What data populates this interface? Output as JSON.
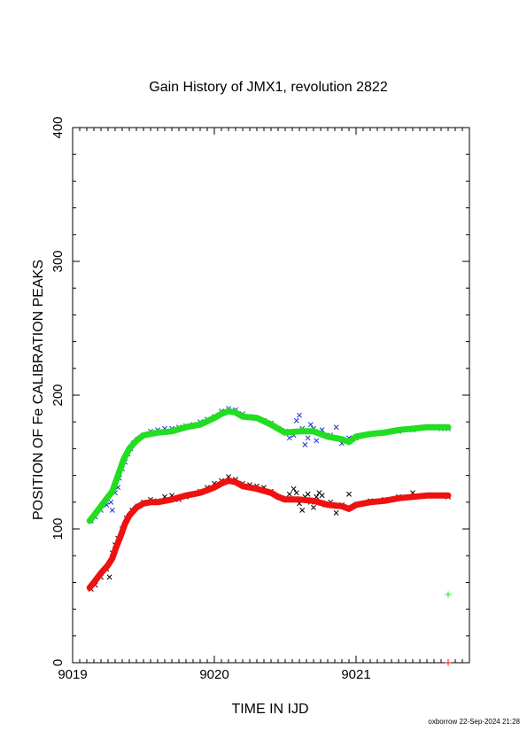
{
  "chart_data": {
    "type": "scatter",
    "title": "Gain History of JMX1, revolution 2822",
    "xlabel": "TIME IN IJD",
    "ylabel": "POSITION OF Fe CALIBRATION PEAKS",
    "xlim": [
      9019.0,
      9021.8
    ],
    "ylim": [
      0,
      400
    ],
    "x_ticks": [
      9019,
      9020,
      9021
    ],
    "y_ticks": [
      0,
      100,
      200,
      300,
      400
    ],
    "grid": false,
    "series": [
      {
        "color": "#2030d0",
        "marker": "x",
        "points": [
          [
            9019.13,
            106
          ],
          [
            9019.16,
            109
          ],
          [
            9019.2,
            114
          ],
          [
            9019.24,
            118
          ],
          [
            9019.27,
            120
          ],
          [
            9019.28,
            114
          ],
          [
            9019.3,
            127
          ],
          [
            9019.32,
            131
          ],
          [
            9019.33,
            138
          ],
          [
            9019.35,
            145
          ],
          [
            9019.37,
            150
          ],
          [
            9019.39,
            156
          ],
          [
            9019.41,
            160
          ],
          [
            9019.43,
            164
          ],
          [
            9019.46,
            167
          ],
          [
            9019.5,
            170
          ],
          [
            9019.55,
            173
          ],
          [
            9019.6,
            174
          ],
          [
            9019.65,
            175
          ],
          [
            9019.7,
            175
          ],
          [
            9019.75,
            176
          ],
          [
            9019.8,
            177
          ],
          [
            9019.85,
            178
          ],
          [
            9019.9,
            180
          ],
          [
            9019.95,
            182
          ],
          [
            9020.0,
            184
          ],
          [
            9020.05,
            188
          ],
          [
            9020.1,
            190
          ],
          [
            9020.15,
            189
          ],
          [
            9020.2,
            186
          ],
          [
            9020.25,
            184
          ],
          [
            9020.3,
            183
          ],
          [
            9020.35,
            181
          ],
          [
            9020.4,
            179
          ],
          [
            9020.45,
            175
          ],
          [
            9020.5,
            173
          ],
          [
            9020.53,
            168
          ],
          [
            9020.56,
            170
          ],
          [
            9020.58,
            181
          ],
          [
            9020.6,
            185
          ],
          [
            9020.62,
            175
          ],
          [
            9020.64,
            163
          ],
          [
            9020.66,
            168
          ],
          [
            9020.68,
            178
          ],
          [
            9020.7,
            175
          ],
          [
            9020.72,
            166
          ],
          [
            9020.74,
            172
          ],
          [
            9020.76,
            174
          ],
          [
            9020.78,
            170
          ],
          [
            9020.82,
            170
          ],
          [
            9020.86,
            176
          ],
          [
            9020.9,
            164
          ],
          [
            9020.95,
            168
          ],
          [
            9021.0,
            168
          ],
          [
            9021.05,
            170
          ],
          [
            9021.1,
            171
          ],
          [
            9021.2,
            172
          ],
          [
            9021.3,
            173
          ],
          [
            9021.4,
            174
          ],
          [
            9021.5,
            176
          ],
          [
            9021.6,
            175
          ],
          [
            9021.65,
            175
          ]
        ]
      },
      {
        "color": "#000000",
        "marker": "x",
        "points": [
          [
            9019.13,
            55
          ],
          [
            9019.16,
            58
          ],
          [
            9019.2,
            64
          ],
          [
            9019.24,
            70
          ],
          [
            9019.26,
            64
          ],
          [
            9019.28,
            82
          ],
          [
            9019.3,
            88
          ],
          [
            9019.32,
            93
          ],
          [
            9019.35,
            100
          ],
          [
            9019.38,
            108
          ],
          [
            9019.42,
            114
          ],
          [
            9019.46,
            117
          ],
          [
            9019.5,
            120
          ],
          [
            9019.55,
            122
          ],
          [
            9019.6,
            121
          ],
          [
            9019.65,
            124
          ],
          [
            9019.7,
            125
          ],
          [
            9019.75,
            122
          ],
          [
            9019.8,
            124
          ],
          [
            9019.85,
            126
          ],
          [
            9019.9,
            128
          ],
          [
            9019.95,
            131
          ],
          [
            9020.0,
            134
          ],
          [
            9020.05,
            136
          ],
          [
            9020.1,
            139
          ],
          [
            9020.15,
            137
          ],
          [
            9020.2,
            134
          ],
          [
            9020.25,
            133
          ],
          [
            9020.3,
            132
          ],
          [
            9020.35,
            131
          ],
          [
            9020.4,
            128
          ],
          [
            9020.45,
            124
          ],
          [
            9020.5,
            122
          ],
          [
            9020.53,
            126
          ],
          [
            9020.56,
            130
          ],
          [
            9020.58,
            127
          ],
          [
            9020.6,
            119
          ],
          [
            9020.62,
            114
          ],
          [
            9020.64,
            124
          ],
          [
            9020.66,
            126
          ],
          [
            9020.68,
            120
          ],
          [
            9020.7,
            116
          ],
          [
            9020.72,
            124
          ],
          [
            9020.74,
            127
          ],
          [
            9020.76,
            125
          ],
          [
            9020.78,
            118
          ],
          [
            9020.82,
            120
          ],
          [
            9020.86,
            112
          ],
          [
            9020.9,
            118
          ],
          [
            9020.95,
            126
          ],
          [
            9021.0,
            118
          ],
          [
            9021.1,
            121
          ],
          [
            9021.2,
            122
          ],
          [
            9021.3,
            124
          ],
          [
            9021.4,
            127
          ],
          [
            9021.5,
            125
          ],
          [
            9021.6,
            125
          ],
          [
            9021.65,
            124
          ]
        ]
      },
      {
        "color": "#22dd22",
        "marker": "line",
        "points": [
          [
            9019.12,
            106
          ],
          [
            9019.15,
            110
          ],
          [
            9019.2,
            117
          ],
          [
            9019.25,
            124
          ],
          [
            9019.28,
            128
          ],
          [
            9019.3,
            134
          ],
          [
            9019.33,
            143
          ],
          [
            9019.36,
            152
          ],
          [
            9019.4,
            160
          ],
          [
            9019.45,
            166
          ],
          [
            9019.5,
            170
          ],
          [
            9019.55,
            171
          ],
          [
            9019.6,
            172
          ],
          [
            9019.7,
            173
          ],
          [
            9019.8,
            176
          ],
          [
            9019.9,
            178
          ],
          [
            9020.0,
            183
          ],
          [
            9020.05,
            186
          ],
          [
            9020.1,
            188
          ],
          [
            9020.15,
            187
          ],
          [
            9020.2,
            184
          ],
          [
            9020.3,
            183
          ],
          [
            9020.4,
            178
          ],
          [
            9020.45,
            175
          ],
          [
            9020.5,
            172
          ],
          [
            9020.6,
            173
          ],
          [
            9020.7,
            173
          ],
          [
            9020.8,
            169
          ],
          [
            9020.9,
            167
          ],
          [
            9020.95,
            165
          ],
          [
            9021.0,
            169
          ],
          [
            9021.1,
            171
          ],
          [
            9021.2,
            172
          ],
          [
            9021.3,
            174
          ],
          [
            9021.4,
            175
          ],
          [
            9021.5,
            176
          ],
          [
            9021.6,
            176
          ],
          [
            9021.65,
            176
          ]
        ]
      },
      {
        "color": "#ee1111",
        "marker": "line",
        "points": [
          [
            9019.12,
            56
          ],
          [
            9019.15,
            60
          ],
          [
            9019.2,
            67
          ],
          [
            9019.25,
            73
          ],
          [
            9019.28,
            78
          ],
          [
            9019.31,
            87
          ],
          [
            9019.34,
            95
          ],
          [
            9019.37,
            104
          ],
          [
            9019.4,
            110
          ],
          [
            9019.45,
            116
          ],
          [
            9019.5,
            119
          ],
          [
            9019.55,
            120
          ],
          [
            9019.6,
            120
          ],
          [
            9019.7,
            122
          ],
          [
            9019.8,
            125
          ],
          [
            9019.9,
            127
          ],
          [
            9020.0,
            131
          ],
          [
            9020.05,
            134
          ],
          [
            9020.1,
            136
          ],
          [
            9020.15,
            135
          ],
          [
            9020.2,
            132
          ],
          [
            9020.3,
            130
          ],
          [
            9020.4,
            127
          ],
          [
            9020.45,
            124
          ],
          [
            9020.5,
            122
          ],
          [
            9020.6,
            122
          ],
          [
            9020.7,
            121
          ],
          [
            9020.8,
            118
          ],
          [
            9020.9,
            117
          ],
          [
            9020.95,
            115
          ],
          [
            9021.0,
            118
          ],
          [
            9021.1,
            120
          ],
          [
            9021.2,
            121
          ],
          [
            9021.3,
            123
          ],
          [
            9021.4,
            124
          ],
          [
            9021.5,
            125
          ],
          [
            9021.6,
            125
          ],
          [
            9021.65,
            125
          ]
        ]
      },
      {
        "color": "#22dd22",
        "marker": "+",
        "points": [
          [
            9021.65,
            51
          ]
        ]
      },
      {
        "color": "#ee1111",
        "marker": "+",
        "points": [
          [
            9021.65,
            0
          ]
        ]
      }
    ],
    "footer": "oxborrow 22-Sep-2024 21:28"
  }
}
